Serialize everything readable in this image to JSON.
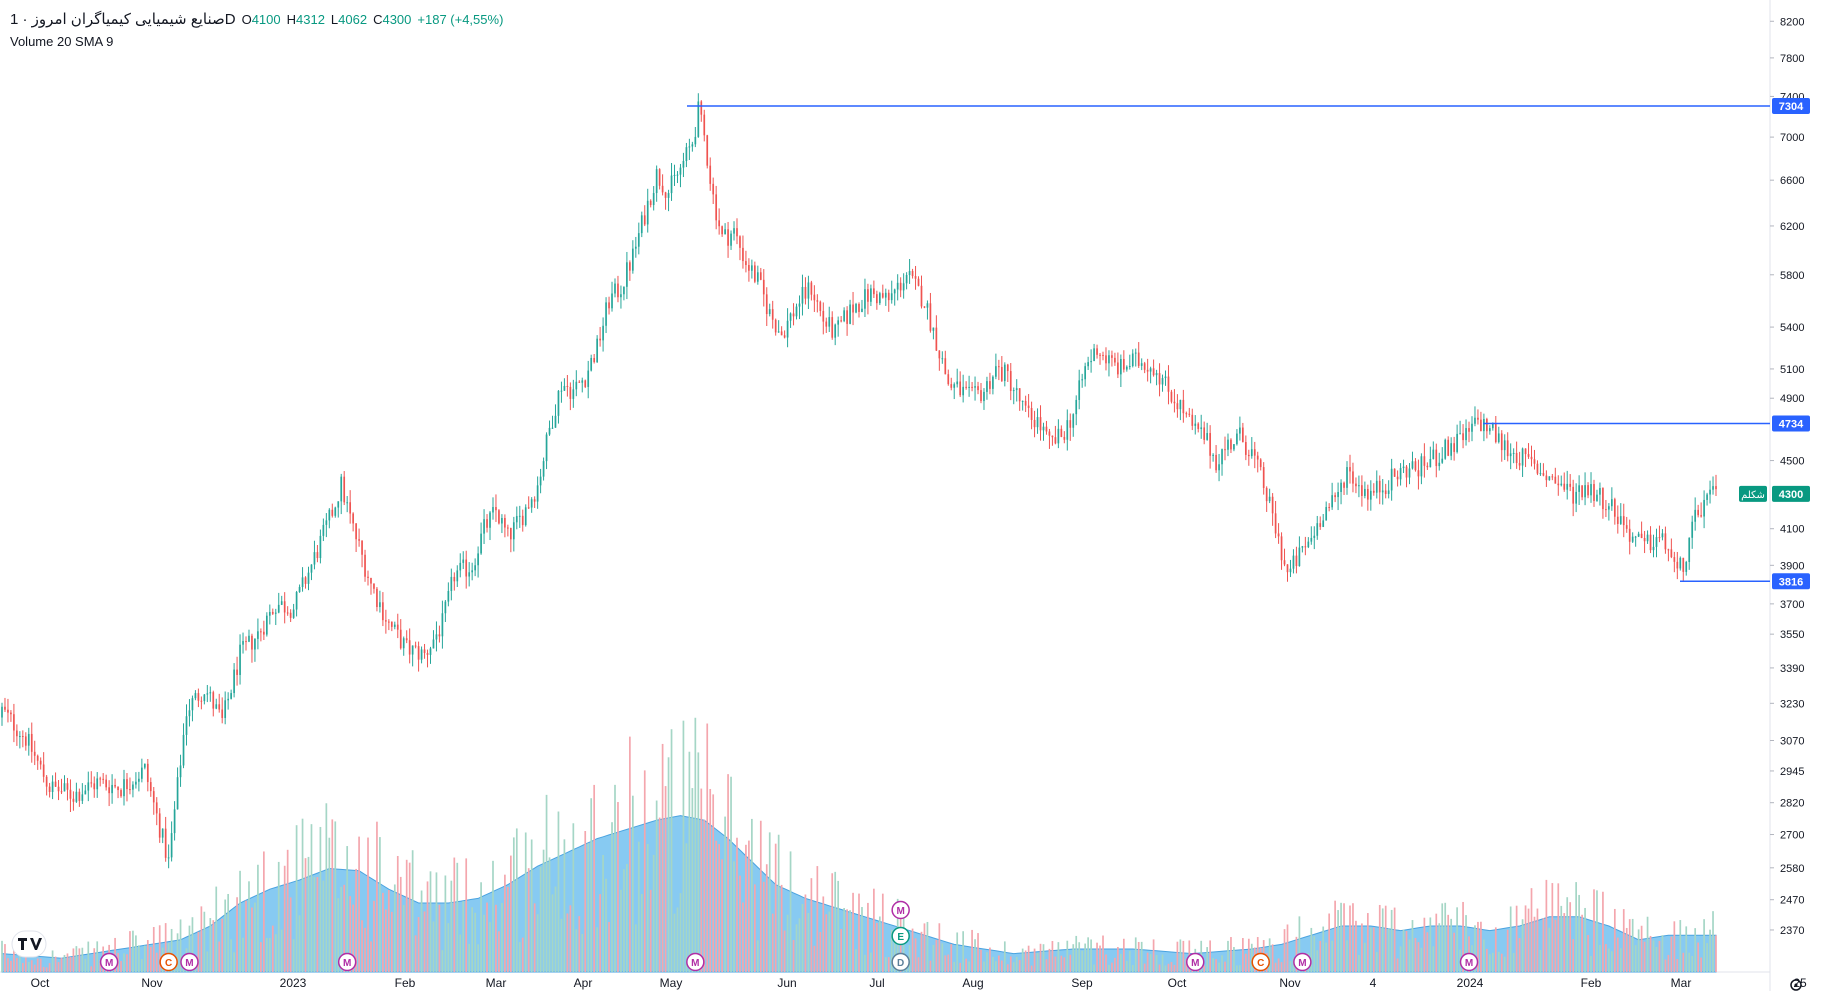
{
  "legend": {
    "symbol_title": "صنایع شیمیایی کیمیاگران امروز · 1D",
    "open_label": "O",
    "open": "4100",
    "high_label": "H",
    "high": "4312",
    "low_label": "L",
    "low": "4062",
    "close_label": "C",
    "close": "4300",
    "change": "+187 (+4,55%)",
    "volume_indicator": "Volume 20 SMA 9"
  },
  "colors": {
    "up": "#26a69a",
    "down": "#ef5350",
    "up_volume": "#a5d6c6",
    "down_volume": "#f4a6ad",
    "volume_sma_fill": "#5fb8ee",
    "line": "#2962ff",
    "axis_text": "#131722",
    "grid": "#f0f3fa"
  },
  "chart_data": {
    "type": "candlestick",
    "y_scale": "log",
    "ylim": [
      2250,
      8350
    ],
    "y_ticks": [
      8200,
      7800,
      7400,
      7000,
      6600,
      6200,
      5800,
      5400,
      5100,
      4900,
      4500,
      4100,
      3900,
      3700,
      3550,
      3390,
      3230,
      3070,
      2945,
      2820,
      2700,
      2580,
      2470,
      2370
    ],
    "x_ticks": [
      "Oct",
      "Nov",
      "2023",
      "Feb",
      "Mar",
      "Apr",
      "May",
      "Jun",
      "Jul",
      "Aug",
      "Sep",
      "Oct",
      "Nov",
      "4",
      "2024",
      "Feb",
      "Mar",
      "25"
    ],
    "close_path": [
      [
        0,
        3200
      ],
      [
        8,
        3080
      ],
      [
        16,
        2880
      ],
      [
        24,
        2850
      ],
      [
        32,
        2900
      ],
      [
        40,
        2880
      ],
      [
        48,
        2950
      ],
      [
        56,
        2600
      ],
      [
        62,
        3200
      ],
      [
        68,
        3300
      ],
      [
        74,
        3150
      ],
      [
        80,
        3450
      ],
      [
        86,
        3550
      ],
      [
        92,
        3700
      ],
      [
        98,
        3680
      ],
      [
        104,
        3900
      ],
      [
        110,
        4150
      ],
      [
        114,
        4350
      ],
      [
        118,
        4100
      ],
      [
        124,
        3800
      ],
      [
        130,
        3600
      ],
      [
        136,
        3480
      ],
      [
        142,
        3450
      ],
      [
        148,
        3600
      ],
      [
        152,
        3850
      ],
      [
        158,
        3900
      ],
      [
        162,
        4100
      ],
      [
        166,
        4200
      ],
      [
        170,
        4050
      ],
      [
        174,
        4150
      ],
      [
        180,
        4350
      ],
      [
        184,
        4700
      ],
      [
        188,
        5000
      ],
      [
        192,
        4950
      ],
      [
        196,
        5050
      ],
      [
        200,
        5250
      ],
      [
        204,
        5600
      ],
      [
        208,
        5700
      ],
      [
        212,
        5950
      ],
      [
        216,
        6300
      ],
      [
        220,
        6650
      ],
      [
        224,
        6500
      ],
      [
        228,
        6700
      ],
      [
        232,
        6950
      ],
      [
        234,
        7250
      ],
      [
        236,
        7000
      ],
      [
        239,
        6450
      ],
      [
        242,
        6100
      ],
      [
        246,
        6150
      ],
      [
        250,
        5900
      ],
      [
        254,
        5750
      ],
      [
        258,
        5500
      ],
      [
        262,
        5350
      ],
      [
        268,
        5600
      ],
      [
        272,
        5700
      ],
      [
        276,
        5450
      ],
      [
        280,
        5350
      ],
      [
        286,
        5550
      ],
      [
        292,
        5650
      ],
      [
        298,
        5600
      ],
      [
        304,
        5800
      ],
      [
        310,
        5600
      ],
      [
        314,
        5300
      ],
      [
        318,
        5000
      ],
      [
        322,
        4950
      ],
      [
        326,
        4900
      ],
      [
        330,
        4950
      ],
      [
        334,
        5100
      ],
      [
        338,
        5050
      ],
      [
        344,
        4800
      ],
      [
        348,
        4750
      ],
      [
        352,
        4600
      ],
      [
        356,
        4650
      ],
      [
        360,
        4800
      ],
      [
        364,
        5100
      ],
      [
        368,
        5250
      ],
      [
        372,
        5150
      ],
      [
        376,
        5100
      ],
      [
        380,
        5150
      ],
      [
        384,
        5150
      ],
      [
        388,
        5100
      ],
      [
        392,
        4950
      ],
      [
        396,
        4850
      ],
      [
        400,
        4700
      ],
      [
        404,
        4650
      ],
      [
        408,
        4500
      ],
      [
        412,
        4600
      ],
      [
        416,
        4650
      ],
      [
        420,
        4550
      ],
      [
        424,
        4350
      ],
      [
        428,
        4100
      ],
      [
        432,
        3850
      ],
      [
        436,
        3950
      ],
      [
        440,
        4050
      ],
      [
        444,
        4200
      ],
      [
        448,
        4250
      ],
      [
        452,
        4450
      ],
      [
        456,
        4350
      ],
      [
        460,
        4300
      ],
      [
        464,
        4350
      ],
      [
        468,
        4400
      ],
      [
        472,
        4450
      ],
      [
        476,
        4450
      ],
      [
        480,
        4500
      ],
      [
        484,
        4550
      ],
      [
        488,
        4600
      ],
      [
        492,
        4650
      ],
      [
        496,
        4750
      ],
      [
        500,
        4700
      ],
      [
        504,
        4600
      ],
      [
        508,
        4550
      ],
      [
        512,
        4500
      ],
      [
        516,
        4450
      ],
      [
        520,
        4400
      ],
      [
        524,
        4350
      ],
      [
        528,
        4300
      ],
      [
        532,
        4350
      ],
      [
        536,
        4300
      ],
      [
        540,
        4250
      ],
      [
        544,
        4150
      ],
      [
        548,
        4050
      ],
      [
        552,
        4000
      ],
      [
        556,
        4050
      ],
      [
        560,
        4000
      ],
      [
        563,
        3850
      ],
      [
        566,
        3950
      ],
      [
        569,
        4150
      ],
      [
        572,
        4250
      ],
      [
        576,
        4300
      ]
    ],
    "volume_sma_path": [
      [
        0,
        0.08
      ],
      [
        20,
        0.06
      ],
      [
        40,
        0.1
      ],
      [
        60,
        0.14
      ],
      [
        70,
        0.2
      ],
      [
        80,
        0.3
      ],
      [
        90,
        0.36
      ],
      [
        100,
        0.4
      ],
      [
        110,
        0.45
      ],
      [
        120,
        0.44
      ],
      [
        130,
        0.36
      ],
      [
        140,
        0.3
      ],
      [
        150,
        0.3
      ],
      [
        160,
        0.32
      ],
      [
        170,
        0.38
      ],
      [
        180,
        0.46
      ],
      [
        190,
        0.52
      ],
      [
        200,
        0.58
      ],
      [
        210,
        0.62
      ],
      [
        220,
        0.66
      ],
      [
        228,
        0.68
      ],
      [
        236,
        0.66
      ],
      [
        244,
        0.58
      ],
      [
        252,
        0.48
      ],
      [
        260,
        0.38
      ],
      [
        270,
        0.32
      ],
      [
        280,
        0.28
      ],
      [
        290,
        0.24
      ],
      [
        300,
        0.2
      ],
      [
        310,
        0.16
      ],
      [
        320,
        0.12
      ],
      [
        330,
        0.1
      ],
      [
        340,
        0.08
      ],
      [
        360,
        0.1
      ],
      [
        380,
        0.1
      ],
      [
        400,
        0.08
      ],
      [
        420,
        0.1
      ],
      [
        430,
        0.12
      ],
      [
        440,
        0.16
      ],
      [
        450,
        0.2
      ],
      [
        460,
        0.2
      ],
      [
        470,
        0.18
      ],
      [
        480,
        0.2
      ],
      [
        490,
        0.2
      ],
      [
        500,
        0.18
      ],
      [
        510,
        0.2
      ],
      [
        520,
        0.24
      ],
      [
        530,
        0.24
      ],
      [
        540,
        0.2
      ],
      [
        550,
        0.14
      ],
      [
        560,
        0.16
      ],
      [
        570,
        0.16
      ],
      [
        576,
        0.16
      ]
    ],
    "price_lines": [
      {
        "label": "7304",
        "value": 7304
      },
      {
        "label": "4734",
        "value": 4734
      },
      {
        "label": "3816",
        "value": 3816
      }
    ],
    "last_price": {
      "label": "4300",
      "tag": "شکلم",
      "value": 4300
    },
    "events": [
      {
        "letter": "M",
        "bar": 36,
        "row": 0
      },
      {
        "letter": "C",
        "bar": 56,
        "row": 0
      },
      {
        "letter": "M",
        "bar": 63,
        "row": 0
      },
      {
        "letter": "M",
        "bar": 116,
        "row": 0
      },
      {
        "letter": "M",
        "bar": 233,
        "row": 0
      },
      {
        "letter": "D",
        "bar": 302,
        "row": 0
      },
      {
        "letter": "E",
        "bar": 302,
        "row": 1
      },
      {
        "letter": "M",
        "bar": 302,
        "row": 2
      },
      {
        "letter": "M",
        "bar": 401,
        "row": 0
      },
      {
        "letter": "C",
        "bar": 423,
        "row": 0
      },
      {
        "letter": "M",
        "bar": 437,
        "row": 0
      },
      {
        "letter": "M",
        "bar": 493,
        "row": 0
      }
    ]
  },
  "toolbar": {
    "settings_icon": "gear-icon"
  },
  "logo": {
    "name": "tradingview-logo-icon"
  }
}
